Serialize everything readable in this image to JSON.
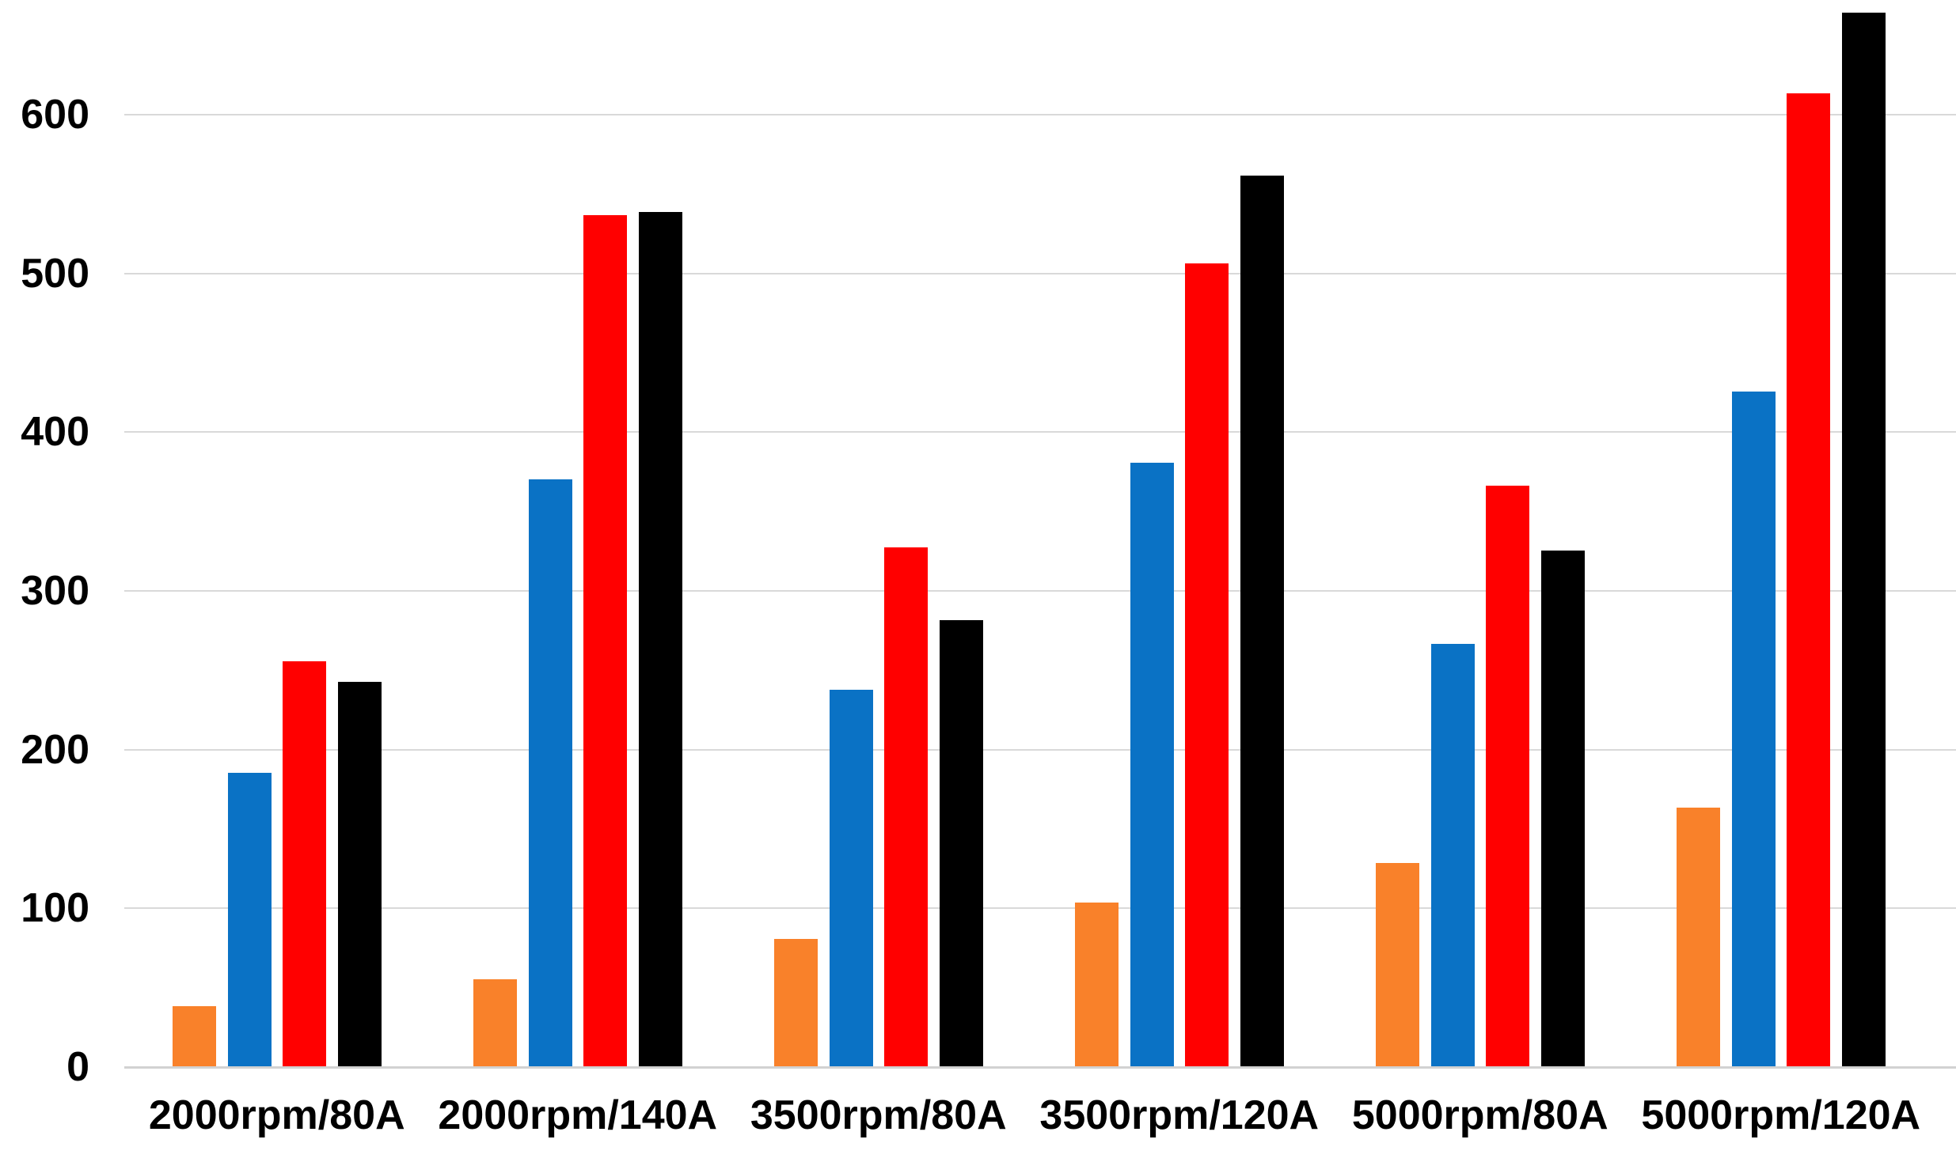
{
  "chart_data": {
    "type": "bar",
    "title": "",
    "xlabel": "",
    "ylabel": "",
    "legend": "none",
    "grid": true,
    "categories": [
      "2000rpm/80A",
      "2000rpm/140A",
      "3500rpm/80A",
      "3500rpm/120A",
      "5000rpm/80A",
      "5000rpm/120A"
    ],
    "series": [
      {
        "name": "orange",
        "color": "#F9812A",
        "values": [
          38,
          55,
          80,
          103,
          128,
          163
        ]
      },
      {
        "name": "blue",
        "color": "#0A72C5",
        "values": [
          185,
          370,
          237,
          380,
          266,
          425
        ]
      },
      {
        "name": "red",
        "color": "#FF0000",
        "values": [
          255,
          536,
          327,
          506,
          366,
          613
        ]
      },
      {
        "name": "black",
        "color": "#000000",
        "values": [
          242,
          538,
          281,
          561,
          325,
          664
        ]
      }
    ],
    "y_axis": {
      "ticks": [
        0,
        100,
        200,
        300,
        400,
        500,
        600
      ],
      "ylim": [
        0,
        671
      ]
    }
  },
  "colors": {
    "background": "#FFFFFF",
    "gridline": "#D9D9D9",
    "axis_line": "#D2D2D2",
    "text": "#000000"
  }
}
